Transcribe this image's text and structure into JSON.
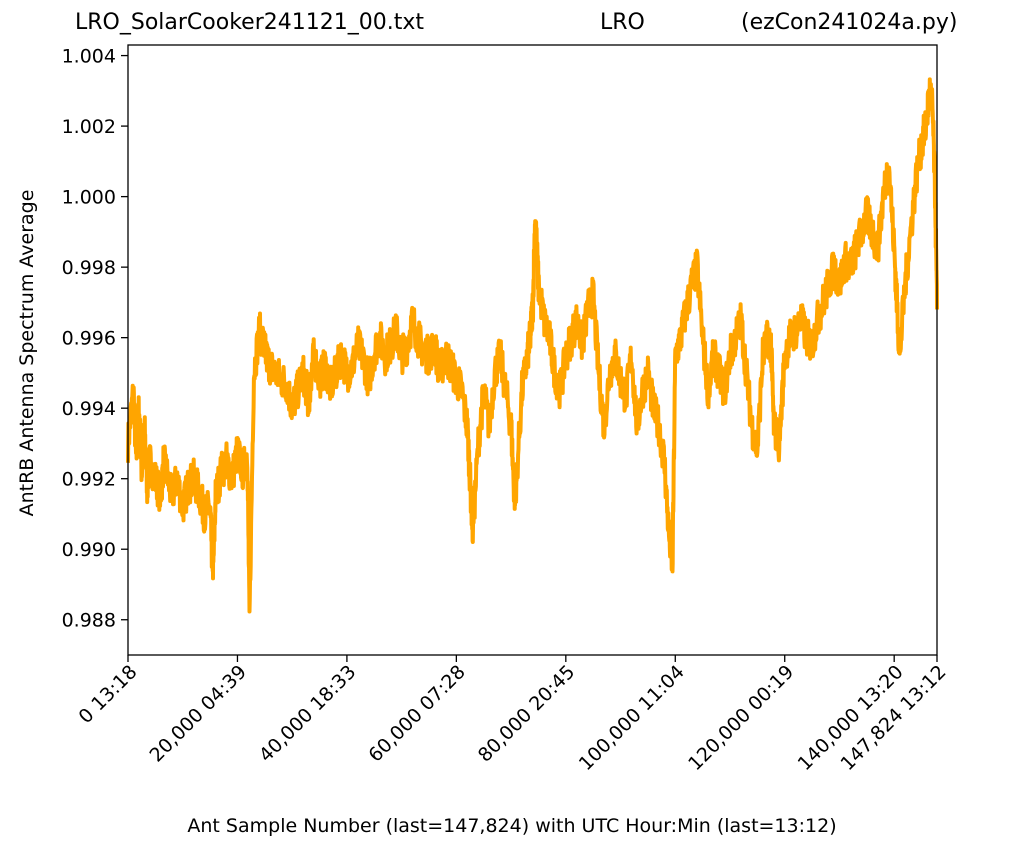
{
  "chart_data": {
    "type": "line",
    "title_left": "LRO_SolarCooker241121_00.txt",
    "title_center": "LRO",
    "title_right": "(ezCon241024a.py)",
    "xlabel": "Ant Sample Number (last=147,824) with UTC Hour:Min (last=13:12)",
    "ylabel": "AntRB Antenna Spectrum Average",
    "xlim": [
      0,
      147824
    ],
    "ylim": [
      0.987,
      1.0043
    ],
    "grid": false,
    "line_color": "#FFA500",
    "x_ticks": [
      {
        "value": 0,
        "label": "0  13:18"
      },
      {
        "value": 20000,
        "label": "20,000  04:39"
      },
      {
        "value": 40000,
        "label": "40,000  18:33"
      },
      {
        "value": 60000,
        "label": "60,000  07:28"
      },
      {
        "value": 80000,
        "label": "80,000  20:45"
      },
      {
        "value": 100000,
        "label": "100,000  11:04"
      },
      {
        "value": 120000,
        "label": "120,000  00:19"
      },
      {
        "value": 140000,
        "label": "140,000  13:20"
      },
      {
        "value": 147824,
        "label": "147,824  13:12"
      }
    ],
    "y_ticks": [
      {
        "value": 0.988,
        "label": "0.988"
      },
      {
        "value": 0.99,
        "label": "0.990"
      },
      {
        "value": 0.992,
        "label": "0.992"
      },
      {
        "value": 0.994,
        "label": "0.994"
      },
      {
        "value": 0.996,
        "label": "0.996"
      },
      {
        "value": 0.998,
        "label": "0.998"
      },
      {
        "value": 1.0,
        "label": "1.000"
      },
      {
        "value": 1.002,
        "label": "1.002"
      },
      {
        "value": 1.004,
        "label": "1.004"
      }
    ],
    "series": [
      {
        "x": [
          0,
          1000,
          1500,
          2000,
          2500,
          3000,
          3500,
          4000,
          5000,
          6000,
          6500,
          7000,
          8000,
          9000,
          10000,
          11000,
          12000,
          13000,
          14000,
          15000,
          15300,
          15600,
          16000,
          17000,
          18000,
          19000,
          20000,
          21000,
          21800,
          22200,
          23000,
          24000,
          24800,
          25200,
          26000,
          27000,
          28000,
          29000,
          30000,
          31000,
          32000,
          32800,
          33000,
          33500,
          34000,
          35000,
          36000,
          37000,
          38000,
          39000,
          40000,
          41000,
          42000,
          43000,
          44000,
          45000,
          46000,
          47000,
          48000,
          49000,
          50000,
          51000,
          52000,
          53000,
          54000,
          55000,
          56000,
          57000,
          58000,
          59000,
          60000,
          61000,
          62000,
          62500,
          63000,
          64000,
          65000,
          66000,
          67000,
          68000,
          69000,
          70000,
          70600,
          71000,
          72000,
          73000,
          73500,
          74000,
          74400,
          75000,
          76000,
          77000,
          78000,
          79000,
          80000,
          81000,
          82000,
          83000,
          84000,
          85000,
          86000,
          87000,
          88000,
          89000,
          90000,
          91000,
          92000,
          93000,
          94000,
          95000,
          96000,
          97000,
          98000,
          98800,
          99500,
          100000,
          101000,
          102000,
          103000,
          104000,
          105000,
          106000,
          107000,
          108000,
          109000,
          110000,
          111000,
          112000,
          113000,
          114000,
          115000,
          116000,
          116900,
          117500,
          118000,
          119000,
          120000,
          121000,
          122000,
          123000,
          124000,
          125000,
          126000,
          127000,
          128000,
          129000,
          130000,
          131000,
          132000,
          133000,
          134000,
          135000,
          136000,
          137000,
          138000,
          139000,
          140000,
          140500,
          141000,
          142000,
          143000,
          144000,
          145000,
          145800,
          146500,
          147000,
          147500,
          147824
        ],
        "y": [
          0.993,
          0.9945,
          0.9925,
          0.994,
          0.9922,
          0.9935,
          0.9918,
          0.9925,
          0.992,
          0.9915,
          0.9925,
          0.9922,
          0.9915,
          0.992,
          0.9912,
          0.9918,
          0.992,
          0.9916,
          0.991,
          0.9912,
          0.99,
          0.9895,
          0.9915,
          0.9922,
          0.9925,
          0.992,
          0.9928,
          0.9922,
          0.9928,
          0.988,
          0.995,
          0.9962,
          0.9958,
          0.9955,
          0.9952,
          0.995,
          0.9948,
          0.9947,
          0.994,
          0.9945,
          0.995,
          0.9944,
          0.9942,
          0.995,
          0.9955,
          0.9948,
          0.9952,
          0.9946,
          0.995,
          0.9955,
          0.995,
          0.9952,
          0.9958,
          0.9954,
          0.9948,
          0.9956,
          0.996,
          0.9955,
          0.9958,
          0.9962,
          0.9955,
          0.9958,
          0.9965,
          0.996,
          0.9956,
          0.9955,
          0.9958,
          0.995,
          0.9955,
          0.9952,
          0.9948,
          0.9945,
          0.9935,
          0.992,
          0.9905,
          0.993,
          0.9945,
          0.9935,
          0.995,
          0.9955,
          0.9945,
          0.9935,
          0.9915,
          0.992,
          0.9945,
          0.9955,
          0.996,
          0.997,
          0.9995,
          0.9975,
          0.9965,
          0.996,
          0.995,
          0.9945,
          0.9955,
          0.996,
          0.9965,
          0.9958,
          0.9968,
          0.9972,
          0.995,
          0.9935,
          0.995,
          0.9955,
          0.9948,
          0.9943,
          0.9955,
          0.9935,
          0.9945,
          0.995,
          0.994,
          0.9935,
          0.9925,
          0.9905,
          0.9895,
          0.9955,
          0.996,
          0.9968,
          0.9975,
          0.998,
          0.996,
          0.9945,
          0.9955,
          0.995,
          0.9945,
          0.9955,
          0.996,
          0.9965,
          0.995,
          0.9935,
          0.9928,
          0.9955,
          0.996,
          0.9958,
          0.9935,
          0.993,
          0.9955,
          0.996,
          0.9962,
          0.9965,
          0.996,
          0.9958,
          0.9965,
          0.997,
          0.9975,
          0.998,
          0.9975,
          0.9982,
          0.998,
          0.9985,
          0.999,
          0.9995,
          0.999,
          0.9985,
          1.0,
          1.001,
          0.9985,
          0.997,
          0.9955,
          0.9975,
          0.999,
          1.0005,
          1.0015,
          1.002,
          1.003,
          1.0025,
          1.0,
          0.9968
        ]
      }
    ]
  }
}
